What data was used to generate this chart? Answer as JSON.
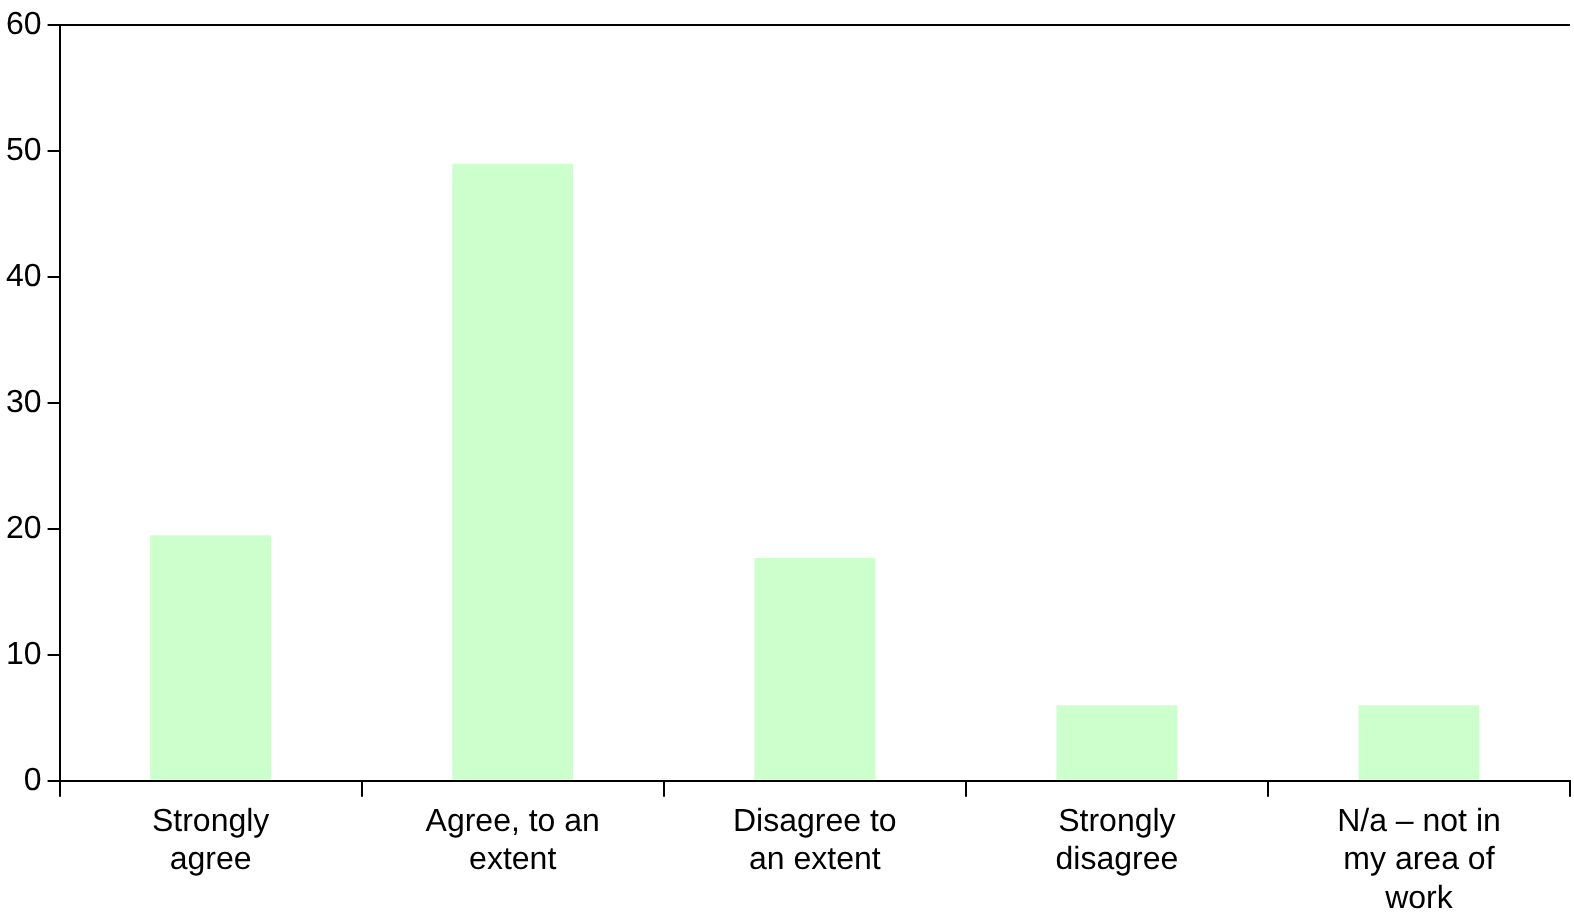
{
  "chart_data": {
    "type": "bar",
    "categories": [
      [
        "Strongly",
        "agree"
      ],
      [
        "Agree, to an",
        "extent"
      ],
      [
        "Disagree to",
        "an extent"
      ],
      [
        "Strongly",
        "disagree"
      ],
      [
        "N/a – not in",
        "my area of",
        "work"
      ]
    ],
    "values": [
      19.5,
      49,
      17.7,
      6,
      6
    ],
    "color": "#ccffcc",
    "ylim": [
      0,
      60
    ],
    "yticks": [
      0,
      10,
      20,
      30,
      40,
      50,
      60
    ],
    "grid": false,
    "legend": false
  }
}
